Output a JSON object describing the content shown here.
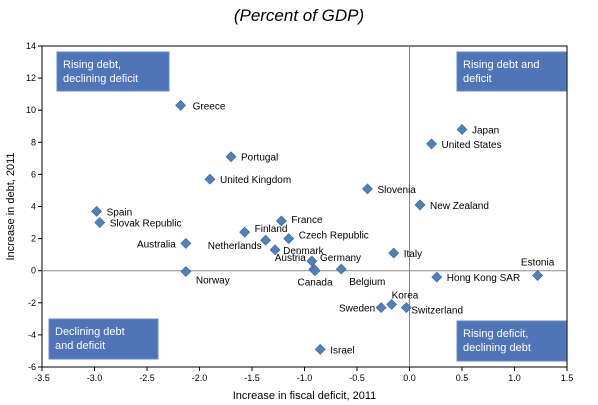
{
  "chart_data": {
    "type": "scatter",
    "title": "(Percent of GDP)",
    "xlabel": "Increase in fiscal deficit, 2011",
    "ylabel": "Increase in debt, 2011",
    "xlim": [
      -3.5,
      1.5
    ],
    "ylim": [
      -6,
      14
    ],
    "xticks": [
      -3.5,
      -3.0,
      -2.5,
      -2.0,
      -1.5,
      -1.0,
      -0.5,
      0.0,
      0.5,
      1.0,
      1.5
    ],
    "xtick_labels": [
      "-3.5",
      "-3.0",
      "-2.5",
      "-2.0",
      "-1.5",
      "-1.0",
      "-0.5",
      "0.0",
      "0.5",
      "1.0",
      "1.5"
    ],
    "yticks": [
      -6,
      -4,
      -2,
      0,
      2,
      4,
      6,
      8,
      10,
      12,
      14
    ],
    "ytick_labels": [
      "-6",
      "-4",
      "-2",
      "0",
      "2",
      "4",
      "6",
      "8",
      "10",
      "12",
      "14"
    ],
    "marker_color": "#4f81bd",
    "quadrant_color": "#4f74b8",
    "quadrants": [
      {
        "text": [
          "Rising debt,",
          "declining deficit"
        ],
        "corner": "top-left"
      },
      {
        "text": [
          "Rising debt and",
          "deficit"
        ],
        "corner": "top-right"
      },
      {
        "text": [
          "Declining debt",
          "and deficit"
        ],
        "corner": "bottom-left"
      },
      {
        "text": [
          "Rising deficit,",
          "declining debt"
        ],
        "corner": "bottom-right"
      }
    ],
    "points": [
      {
        "name": "Greece",
        "x": -2.18,
        "y": 10.3,
        "lx": 12,
        "ly": 4,
        "anchor": "start"
      },
      {
        "name": "Japan",
        "x": 0.5,
        "y": 8.8,
        "lx": 10,
        "ly": 4,
        "anchor": "start"
      },
      {
        "name": "United States",
        "x": 0.21,
        "y": 7.9,
        "lx": 10,
        "ly": 4,
        "anchor": "start"
      },
      {
        "name": "Portugal",
        "x": -1.7,
        "y": 7.1,
        "lx": 10,
        "ly": 4,
        "anchor": "start"
      },
      {
        "name": "United Kingdom",
        "x": -1.9,
        "y": 5.7,
        "lx": 10,
        "ly": 4,
        "anchor": "start"
      },
      {
        "name": "Slovenia",
        "x": -0.4,
        "y": 5.1,
        "lx": 10,
        "ly": 4,
        "anchor": "start"
      },
      {
        "name": "New Zealand",
        "x": 0.1,
        "y": 4.1,
        "lx": 10,
        "ly": 4,
        "anchor": "start"
      },
      {
        "name": "Spain",
        "x": -2.98,
        "y": 3.7,
        "lx": 10,
        "ly": 4,
        "anchor": "start"
      },
      {
        "name": "France",
        "x": -1.22,
        "y": 3.1,
        "lx": 10,
        "ly": 2,
        "anchor": "start"
      },
      {
        "name": "Slovak Republic",
        "x": -2.95,
        "y": 3.0,
        "lx": 10,
        "ly": 4,
        "anchor": "start"
      },
      {
        "name": "Finland",
        "x": -1.57,
        "y": 2.4,
        "lx": 10,
        "ly": 0,
        "anchor": "start"
      },
      {
        "name": "Czech Republic",
        "x": -1.15,
        "y": 2.0,
        "lx": 10,
        "ly": 0,
        "anchor": "start"
      },
      {
        "name": "Australia",
        "x": -2.13,
        "y": 1.7,
        "lx": -10,
        "ly": 4,
        "anchor": "end"
      },
      {
        "name": "Netherlands",
        "x": -1.37,
        "y": 1.9,
        "lx": -4,
        "ly": 9,
        "anchor": "end"
      },
      {
        "name": "Denmark",
        "x": -1.28,
        "y": 1.3,
        "lx": 8,
        "ly": 4,
        "anchor": "start"
      },
      {
        "name": "Italy",
        "x": -0.15,
        "y": 1.1,
        "lx": 10,
        "ly": 4,
        "anchor": "start"
      },
      {
        "name": "Austria",
        "x": -0.93,
        "y": 0.6,
        "lx": -6,
        "ly": 0,
        "anchor": "end"
      },
      {
        "name": "Germany",
        "x": -0.91,
        "y": 0.1,
        "lx": 6,
        "ly": -8,
        "anchor": "start"
      },
      {
        "name": "Belgium",
        "x": -0.65,
        "y": 0.1,
        "lx": 8,
        "ly": 16,
        "anchor": "start"
      },
      {
        "name": "Norway",
        "x": -2.13,
        "y": -0.05,
        "lx": 10,
        "ly": 12,
        "anchor": "start"
      },
      {
        "name": "Canada",
        "x": -0.9,
        "y": 0.0,
        "lx": 0,
        "ly": 15,
        "anchor": "middle"
      },
      {
        "name": "Estonia",
        "x": 1.22,
        "y": -0.3,
        "lx": 0,
        "ly": -10,
        "anchor": "middle"
      },
      {
        "name": "Hong Kong SAR",
        "x": 0.26,
        "y": -0.4,
        "lx": 10,
        "ly": 4,
        "anchor": "start"
      },
      {
        "name": "Korea",
        "x": -0.17,
        "y": -2.1,
        "lx": 0,
        "ly": -6,
        "anchor": "start"
      },
      {
        "name": "Sweden",
        "x": -0.27,
        "y": -2.3,
        "lx": -6,
        "ly": 4,
        "anchor": "end"
      },
      {
        "name": "Switzerland",
        "x": -0.03,
        "y": -2.3,
        "lx": 5,
        "ly": 6,
        "anchor": "start"
      },
      {
        "name": "Israel",
        "x": -0.85,
        "y": -4.9,
        "lx": 10,
        "ly": 4,
        "anchor": "start"
      }
    ]
  }
}
